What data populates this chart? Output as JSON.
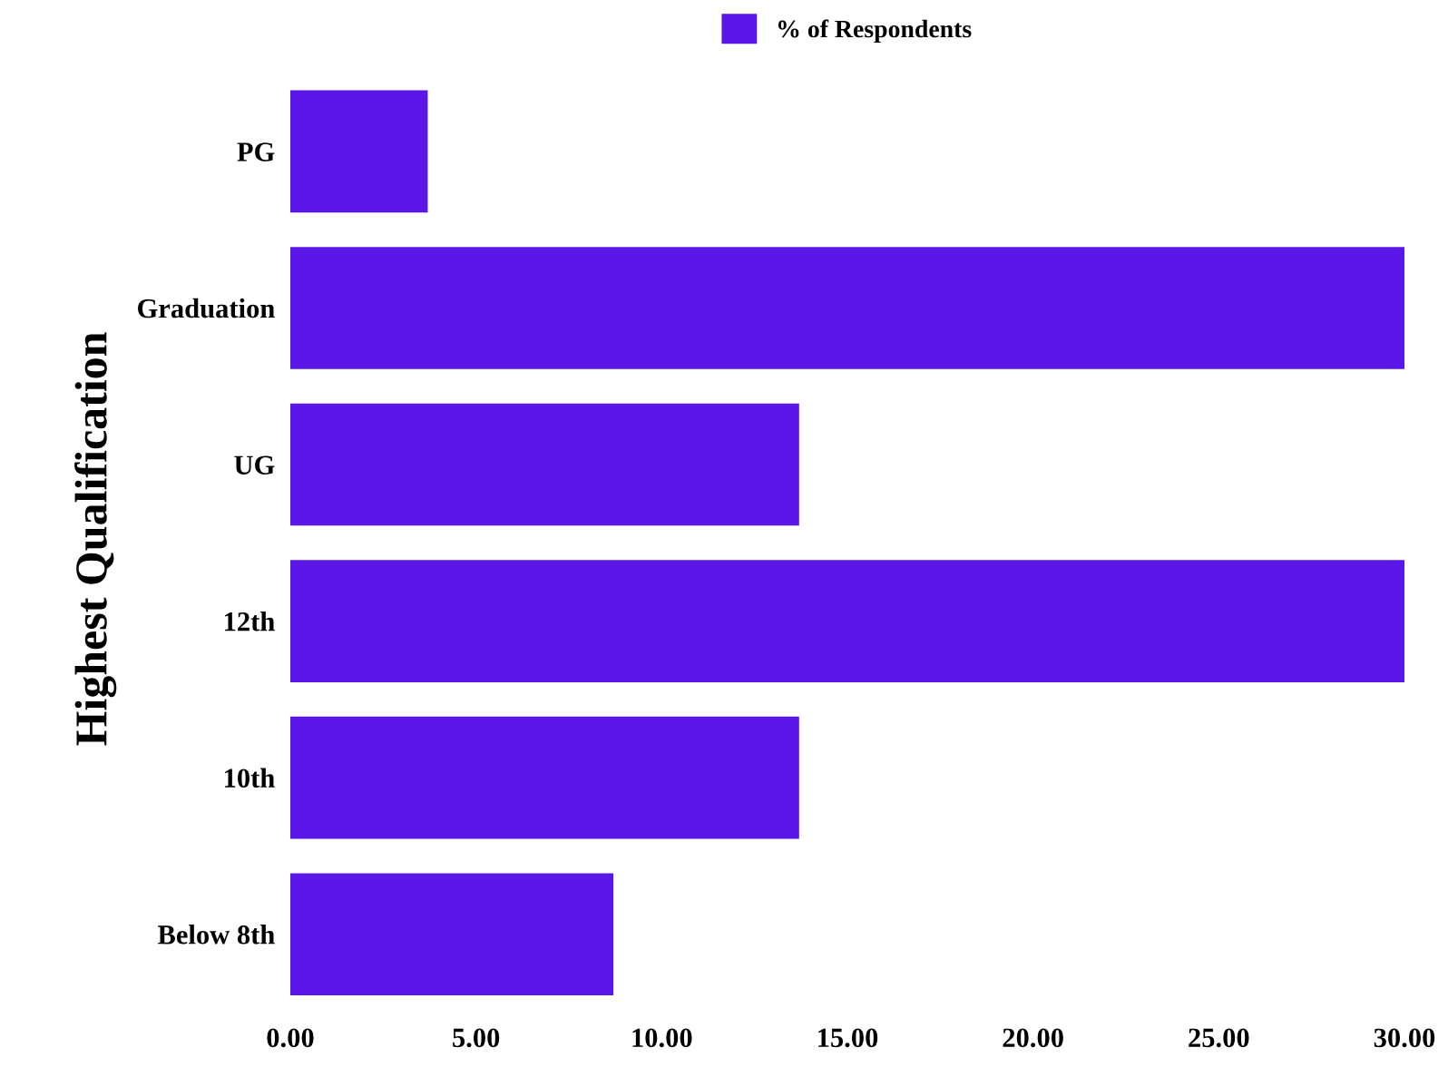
{
  "chart_data": {
    "type": "bar",
    "orientation": "horizontal",
    "ylabel": "Highest Qualification",
    "categories": [
      "PG",
      "Graduation",
      "UG",
      "12th",
      "10th",
      "Below 8th"
    ],
    "series": [
      {
        "name": "% of Respondents",
        "color": "#5b16e8",
        "values": [
          3.7,
          30.0,
          13.7,
          30.0,
          13.7,
          8.7
        ]
      }
    ],
    "xlim": [
      0,
      30
    ],
    "xticks": [
      {
        "value": 0,
        "label": "0.00"
      },
      {
        "value": 5,
        "label": "5.00"
      },
      {
        "value": 10,
        "label": "10.00"
      },
      {
        "value": 15,
        "label": "15.00"
      },
      {
        "value": 20,
        "label": "20.00"
      },
      {
        "value": 25,
        "label": "25.00"
      },
      {
        "value": 30,
        "label": "30.00"
      }
    ],
    "grid": false,
    "legend": "top"
  }
}
